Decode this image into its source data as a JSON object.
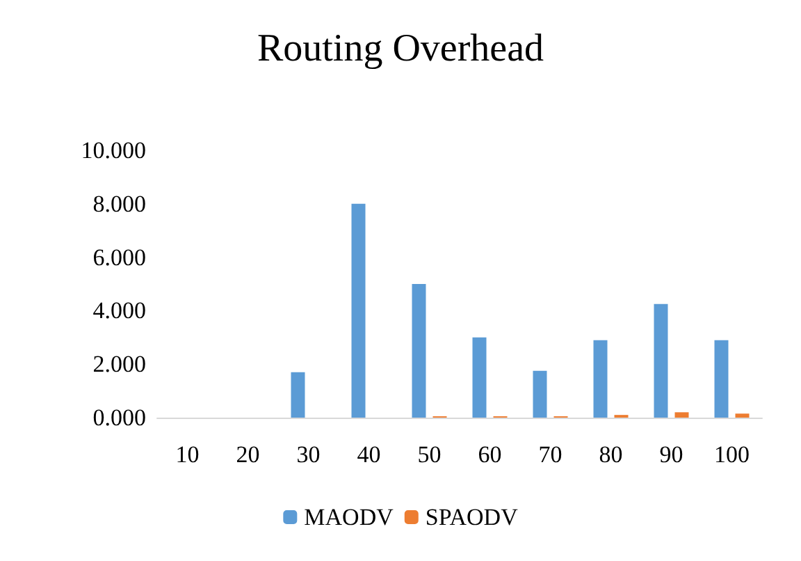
{
  "chart_data": {
    "type": "bar",
    "title": "Routing Overhead",
    "categories": [
      "10",
      "20",
      "30",
      "40",
      "50",
      "60",
      "70",
      "80",
      "90",
      "100"
    ],
    "series": [
      {
        "name": "MAODV",
        "color": "#5b9bd5",
        "values": [
          0,
          0,
          1.7,
          8.0,
          5.0,
          3.0,
          1.75,
          2.9,
          4.25,
          2.9
        ]
      },
      {
        "name": "SPAODV",
        "color": "#ed7d31",
        "values": [
          0,
          0,
          0,
          0,
          0.05,
          0.05,
          0.05,
          0.1,
          0.2,
          0.15
        ]
      }
    ],
    "ylim": [
      0,
      10
    ],
    "yticks": [
      {
        "value": 0,
        "label": "0.000"
      },
      {
        "value": 2,
        "label": "2.000"
      },
      {
        "value": 4,
        "label": "4.000"
      },
      {
        "value": 6,
        "label": "6.000"
      },
      {
        "value": 8,
        "label": "8.000"
      },
      {
        "value": 10,
        "label": "10.000"
      }
    ],
    "grid": false,
    "legend": "bottom"
  }
}
